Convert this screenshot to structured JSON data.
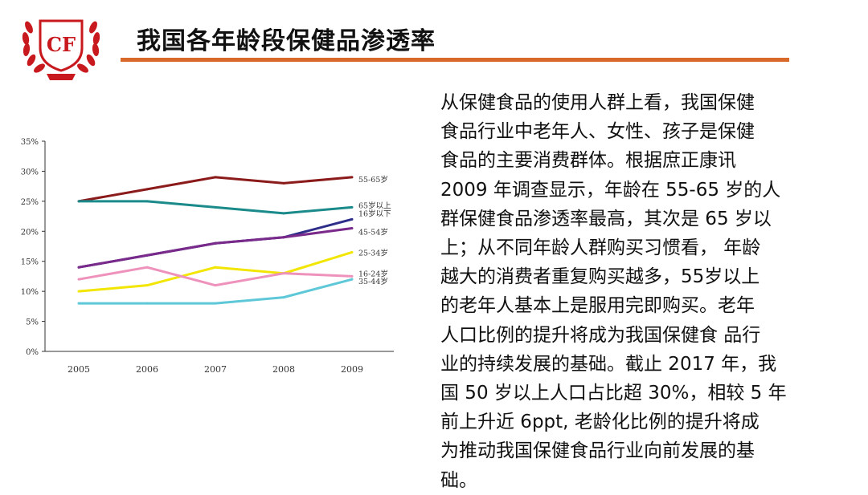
{
  "logo": {
    "text": "CF"
  },
  "header": {
    "title": "我国各年龄段保健品渗透率"
  },
  "chart_data": {
    "type": "line",
    "x": [
      "2005",
      "2006",
      "2007",
      "2008",
      "2009"
    ],
    "ylim": [
      0,
      35
    ],
    "yticks": [
      "0%",
      "5%",
      "10%",
      "15%",
      "20%",
      "25%",
      "30%",
      "35%"
    ],
    "series": [
      {
        "name": "55-65岁",
        "color": "#8b1a1a",
        "values": [
          25,
          27,
          29,
          28,
          29
        ]
      },
      {
        "name": "65岁以上",
        "color": "#1a8a8a",
        "values": [
          25,
          25,
          24,
          23,
          24
        ]
      },
      {
        "name": "16岁以下",
        "color": "#2e2e8a",
        "values": [
          14,
          16,
          18,
          19,
          22
        ]
      },
      {
        "name": "45-54岁",
        "color": "#7a2a8a",
        "values": [
          14,
          16,
          18,
          19,
          20.5
        ]
      },
      {
        "name": "25-34岁",
        "color": "#f2e600",
        "values": [
          10,
          11,
          14,
          13,
          16.5
        ]
      },
      {
        "name": "16-24岁",
        "color": "#ee92bc",
        "values": [
          12,
          14,
          11,
          13,
          12.5
        ]
      },
      {
        "name": "35-44岁",
        "color": "#5ec8d8",
        "values": [
          8,
          8,
          8,
          9,
          12
        ]
      }
    ]
  },
  "body": {
    "lines": [
      "从保健食品的使用人群上看，我国保健",
      "食品行业中老年人、女性、孩子是保健",
      "食品的主要消费群体。根据庶正康讯",
      "2009 年调查显示，年龄在 55-65 岁的人",
      "群保健食品渗透率最高，其次是 65 岁以",
      "上；从不同年龄人群购买习惯看， 年龄",
      "越大的消费者重复购买越多，55岁以上",
      "的老年人基本上是服用完即购买。老年",
      "人口比例的提升将成为我国保健食 品行",
      "业的持续发展的基础。截止 2017 年，我",
      "国 50 岁以上人口占比超 30%，相较 5 年",
      "前上升近 6ppt, 老龄化比例的提升将成",
      "为推动我国保健食品行业向前发展的基",
      "础。"
    ]
  }
}
